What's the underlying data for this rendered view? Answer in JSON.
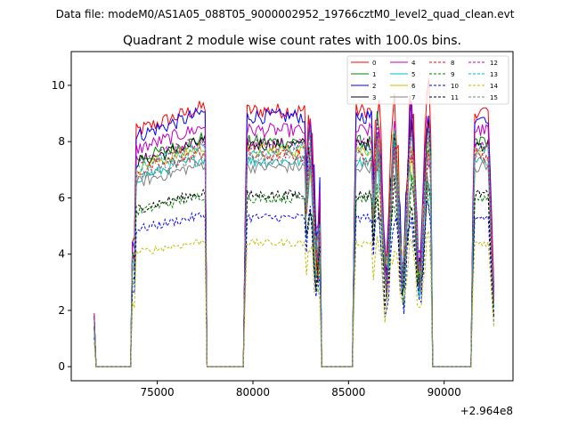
{
  "chart_data": {
    "type": "line",
    "suptitle": "Data file: modeM0/AS1A05_088T05_9000002952_19766cztM0_level2_quad_clean.evt",
    "title": "Quadrant 2 module wise count rates with 100.0s bins.",
    "xlabel": "",
    "ylabel": "",
    "offset_text": "+2.964e8",
    "xlim": [
      70500,
      93600
    ],
    "ylim": [
      -0.5,
      11.2
    ],
    "x_ticks": [
      75000,
      80000,
      85000,
      90000
    ],
    "x_tick_labels": [
      "75000",
      "80000",
      "85000",
      "90000"
    ],
    "y_ticks": [
      0,
      2,
      4,
      6,
      8,
      10
    ],
    "y_tick_labels": [
      "0",
      "2",
      "4",
      "6",
      "8",
      "10"
    ],
    "grid": false,
    "legend_position": "top-right",
    "segments": [
      {
        "start": 71600,
        "end": 77600
      },
      {
        "start": 79600,
        "end": 83600
      },
      {
        "start": 85300,
        "end": 89500
      },
      {
        "start": 91500,
        "end": 92600
      }
    ],
    "series": [
      {
        "name": "0",
        "color": "#ff0000",
        "dash": "solid",
        "level": 9.1
      },
      {
        "name": "1",
        "color": "#008000",
        "dash": "solid",
        "level": 8.0
      },
      {
        "name": "2",
        "color": "#0000ff",
        "dash": "solid",
        "level": 8.9
      },
      {
        "name": "3",
        "color": "#000000",
        "dash": "solid",
        "level": 7.9
      },
      {
        "name": "4",
        "color": "#bf00bf",
        "dash": "solid",
        "level": 8.4
      },
      {
        "name": "5",
        "color": "#00bfbf",
        "dash": "solid",
        "level": 7.3
      },
      {
        "name": "6",
        "color": "#bfbf00",
        "dash": "solid",
        "level": 7.7
      },
      {
        "name": "7",
        "color": "#808080",
        "dash": "solid",
        "level": 7.1
      },
      {
        "name": "8",
        "color": "#ff0000",
        "dash": "dashed",
        "level": 7.5
      },
      {
        "name": "9",
        "color": "#008000",
        "dash": "dashed",
        "level": 6.0
      },
      {
        "name": "10",
        "color": "#0000ff",
        "dash": "dashed",
        "level": 5.3
      },
      {
        "name": "11",
        "color": "#000000",
        "dash": "dashed",
        "level": 6.1
      },
      {
        "name": "12",
        "color": "#bf00bf",
        "dash": "dashed",
        "level": 7.9
      },
      {
        "name": "13",
        "color": "#00bfbf",
        "dash": "dashed",
        "level": 7.7
      },
      {
        "name": "14",
        "color": "#bfbf00",
        "dash": "dashed",
        "level": 4.4
      },
      {
        "name": "15",
        "color": "#808080",
        "dash": "dashed",
        "level": 7.4
      }
    ]
  }
}
